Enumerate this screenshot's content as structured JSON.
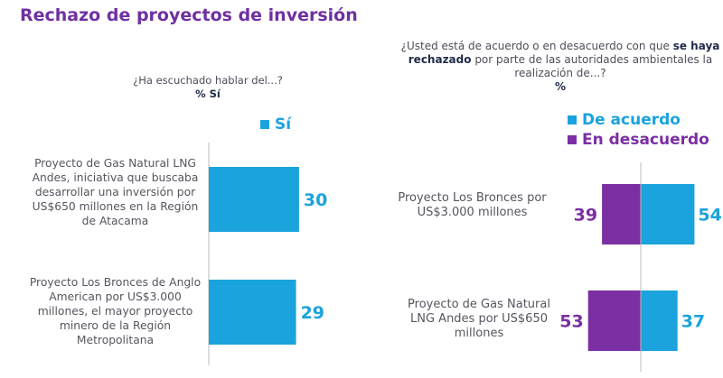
{
  "title": "Rechazo de proyectos de inversión",
  "colors": {
    "blue": "#1aa3dc",
    "purple": "#7b2fa2",
    "title": "#7030a0"
  },
  "chart_data": [
    {
      "type": "bar",
      "orientation": "horizontal",
      "question": "¿Ha escuchado hablar del...?",
      "unit": "% Sí",
      "categories": [
        "Proyecto de Gas Natural LNG Andes, iniciativa que buscaba desarrollar una inversión por US$650 millones en la Región de Atacama",
        "Proyecto Los Bronces de Anglo American por US$3.000 millones, el mayor proyecto minero de la Región Metropolitana"
      ],
      "series": [
        {
          "name": "Sí",
          "values": [
            30,
            29
          ]
        }
      ],
      "legend": "top-right"
    },
    {
      "type": "bar",
      "orientation": "horizontal",
      "diverging": true,
      "question_parts": [
        "¿Usted está de acuerdo o en desacuerdo con que ",
        "se haya rechazado",
        " por parte de las autoridades ambientales la realización de...?"
      ],
      "unit": "%",
      "categories": [
        "Proyecto Los Bronces por US$3.000 millones",
        "Proyecto de Gas Natural LNG Andes por US$650 millones"
      ],
      "series": [
        {
          "name": "De acuerdo",
          "values": [
            54,
            37
          ]
        },
        {
          "name": "En desacuerdo",
          "values": [
            39,
            53
          ]
        }
      ],
      "legend": "top-right"
    }
  ]
}
